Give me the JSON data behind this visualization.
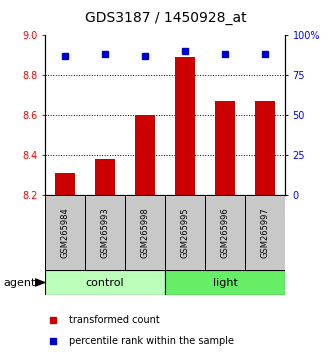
{
  "title": "GDS3187 / 1450928_at",
  "samples": [
    "GSM265984",
    "GSM265993",
    "GSM265998",
    "GSM265995",
    "GSM265996",
    "GSM265997"
  ],
  "bar_values": [
    8.31,
    8.38,
    8.6,
    8.89,
    8.67,
    8.67
  ],
  "percentile_values": [
    87,
    88,
    87,
    90,
    88,
    88
  ],
  "bar_color": "#CC0000",
  "dot_color": "#0000CC",
  "ylim_left": [
    8.2,
    9.0
  ],
  "ylim_right": [
    0,
    100
  ],
  "yticks_left": [
    8.2,
    8.4,
    8.6,
    8.8,
    9.0
  ],
  "ytick_right_vals": [
    0,
    25,
    50,
    75,
    100
  ],
  "ytick_right_labels": [
    "0",
    "25",
    "50",
    "75",
    "100%"
  ],
  "grid_values": [
    8.4,
    8.6,
    8.8
  ],
  "control_color_light": "#BBFFBB",
  "control_color": "#66EE66",
  "sample_bg_color": "#C8C8C8",
  "legend_items": [
    "transformed count",
    "percentile rank within the sample"
  ],
  "title_fontsize": 10,
  "tick_fontsize": 7,
  "sample_fontsize": 6,
  "group_fontsize": 8,
  "legend_fontsize": 7,
  "agent_fontsize": 8,
  "bar_width": 0.5
}
